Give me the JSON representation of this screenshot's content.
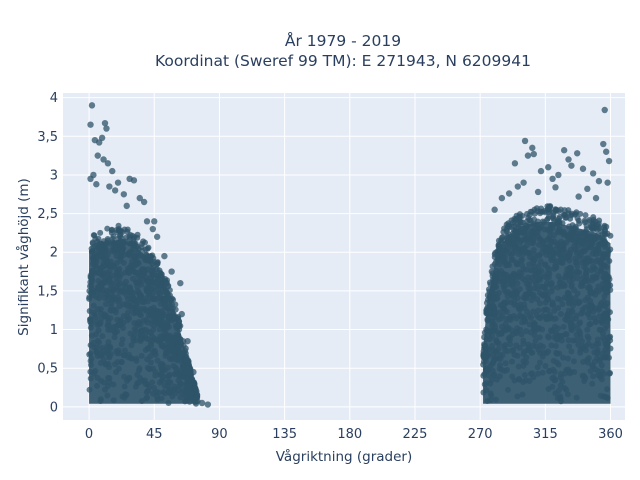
{
  "chart_data": {
    "type": "scatter",
    "title_line1": "År 1979 - 2019",
    "title_line2": "Koordinat (Sweref 99 TM): E 271943, N 6209941",
    "xlabel": "Vågriktning (grader)",
    "ylabel": "Signifikant våghöjd (m)",
    "xlim": [
      -18,
      370
    ],
    "ylim": [
      -0.17,
      4.06
    ],
    "x_ticks": [
      0,
      45,
      90,
      135,
      180,
      225,
      270,
      315,
      360
    ],
    "x_tick_labels": [
      "0",
      "45",
      "90",
      "135",
      "180",
      "225",
      "270",
      "315",
      "360"
    ],
    "y_ticks": [
      0,
      0.5,
      1,
      1.5,
      2,
      2.5,
      3,
      3.5,
      4
    ],
    "y_tick_labels": [
      "0",
      "0,5",
      "1",
      "1,5",
      "2",
      "2,5",
      "3",
      "3,5",
      "4"
    ],
    "grid": true,
    "marker_color": "#2f5469",
    "plot_bg_color": "#e5ecf6",
    "clusters": [
      {
        "name": "",
        "x_range": [
          0,
          75
        ],
        "upper_envelope": [
          [
            0,
            2.2
          ],
          [
            10,
            2.3
          ],
          [
            20,
            2.35
          ],
          [
            30,
            2.3
          ],
          [
            40,
            2.1
          ],
          [
            50,
            1.8
          ],
          [
            55,
            1.6
          ],
          [
            60,
            1.3
          ],
          [
            65,
            0.9
          ],
          [
            70,
            0.5
          ],
          [
            75,
            0.15
          ]
        ]
      },
      {
        "name": "",
        "x_range": [
          272,
          360
        ],
        "upper_envelope": [
          [
            272,
            0.8
          ],
          [
            275,
            1.5
          ],
          [
            280,
            2.0
          ],
          [
            285,
            2.3
          ],
          [
            290,
            2.4
          ],
          [
            300,
            2.55
          ],
          [
            310,
            2.6
          ],
          [
            320,
            2.6
          ],
          [
            330,
            2.55
          ],
          [
            340,
            2.5
          ],
          [
            350,
            2.45
          ],
          [
            360,
            2.3
          ]
        ]
      }
    ],
    "outliers": [
      {
        "x": 2,
        "y": 3.9
      },
      {
        "x": 1,
        "y": 3.65
      },
      {
        "x": 11,
        "y": 3.67
      },
      {
        "x": 12,
        "y": 3.6
      },
      {
        "x": 4,
        "y": 3.45
      },
      {
        "x": 7,
        "y": 3.42
      },
      {
        "x": 9,
        "y": 3.48
      },
      {
        "x": 10,
        "y": 3.2
      },
      {
        "x": 13,
        "y": 3.15
      },
      {
        "x": 6,
        "y": 3.25
      },
      {
        "x": 3,
        "y": 3.0
      },
      {
        "x": 16,
        "y": 3.05
      },
      {
        "x": 20,
        "y": 2.9
      },
      {
        "x": 28,
        "y": 2.95
      },
      {
        "x": 31,
        "y": 2.93
      },
      {
        "x": 24,
        "y": 2.75
      },
      {
        "x": 35,
        "y": 2.7
      },
      {
        "x": 38,
        "y": 2.65
      },
      {
        "x": 14,
        "y": 2.85
      },
      {
        "x": 18,
        "y": 2.8
      },
      {
        "x": 1,
        "y": 2.95
      },
      {
        "x": 5,
        "y": 2.88
      },
      {
        "x": 26,
        "y": 2.6
      },
      {
        "x": 40,
        "y": 2.4
      },
      {
        "x": 47,
        "y": 2.2
      },
      {
        "x": 52,
        "y": 1.95
      },
      {
        "x": 57,
        "y": 1.75
      },
      {
        "x": 63,
        "y": 1.6
      },
      {
        "x": 64,
        "y": 1.2
      },
      {
        "x": 68,
        "y": 0.85
      },
      {
        "x": 72,
        "y": 0.45
      },
      {
        "x": 82,
        "y": 0.03
      },
      {
        "x": 78,
        "y": 0.05
      },
      {
        "x": 74,
        "y": 0.12
      },
      {
        "x": 45,
        "y": 2.4
      },
      {
        "x": 44,
        "y": 2.3
      },
      {
        "x": 356,
        "y": 3.84
      },
      {
        "x": 301,
        "y": 3.44
      },
      {
        "x": 306,
        "y": 3.35
      },
      {
        "x": 307,
        "y": 3.27
      },
      {
        "x": 303,
        "y": 3.25
      },
      {
        "x": 328,
        "y": 3.32
      },
      {
        "x": 337,
        "y": 3.28
      },
      {
        "x": 355,
        "y": 3.4
      },
      {
        "x": 357,
        "y": 3.3
      },
      {
        "x": 359,
        "y": 3.18
      },
      {
        "x": 331,
        "y": 3.2
      },
      {
        "x": 294,
        "y": 3.15
      },
      {
        "x": 312,
        "y": 3.05
      },
      {
        "x": 317,
        "y": 3.1
      },
      {
        "x": 320,
        "y": 2.95
      },
      {
        "x": 324,
        "y": 3.0
      },
      {
        "x": 333,
        "y": 3.12
      },
      {
        "x": 341,
        "y": 3.08
      },
      {
        "x": 348,
        "y": 3.02
      },
      {
        "x": 352,
        "y": 2.92
      },
      {
        "x": 296,
        "y": 2.85
      },
      {
        "x": 300,
        "y": 2.9
      },
      {
        "x": 310,
        "y": 2.78
      },
      {
        "x": 322,
        "y": 2.84
      },
      {
        "x": 344,
        "y": 2.82
      },
      {
        "x": 358,
        "y": 2.9
      },
      {
        "x": 285,
        "y": 2.7
      },
      {
        "x": 290,
        "y": 2.76
      },
      {
        "x": 280,
        "y": 2.55
      },
      {
        "x": 338,
        "y": 2.72
      },
      {
        "x": 350,
        "y": 2.7
      }
    ]
  }
}
